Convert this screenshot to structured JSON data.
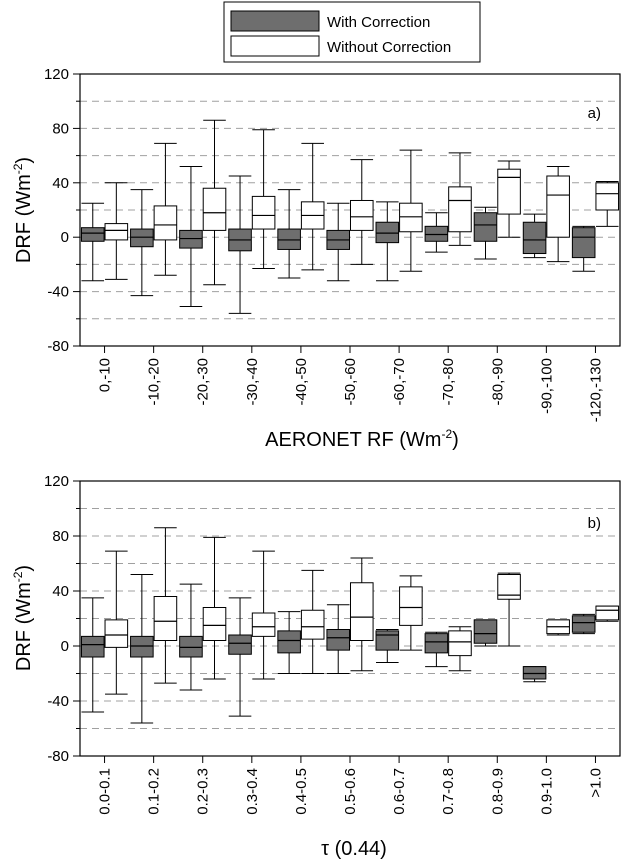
{
  "legend": {
    "items": [
      {
        "label": "With Correction",
        "fill": "#6e6e6e"
      },
      {
        "label": "Without Correction",
        "fill": "#ffffff"
      }
    ]
  },
  "chart_data": [
    {
      "type": "box",
      "panel_label": "a)",
      "xlabel_main": "AERONET RF (Wm",
      "xlabel_sup": "-2",
      "xlabel_tail": ")",
      "ylabel_main": "DRF (Wm",
      "ylabel_sup": "-2",
      "ylabel_tail": ")",
      "ylim": [
        -80,
        120
      ],
      "yticks": [
        -80,
        -40,
        0,
        40,
        80,
        120
      ],
      "grid": "dashed horizontal every 20",
      "categories": [
        "0,-10",
        "-10,-20",
        "-20,-30",
        "-30,-40",
        "-40,-50",
        "-50,-60",
        "-60,-70",
        "-70,-80",
        "-80,-90",
        "-90,-100",
        "-120,-130"
      ],
      "series": [
        {
          "name": "With Correction",
          "boxes": [
            {
              "min": -32,
              "q1": -3,
              "median": 3,
              "q3": 7,
              "max": 25
            },
            {
              "min": -43,
              "q1": -7,
              "median": 0,
              "q3": 6,
              "max": 35
            },
            {
              "min": -51,
              "q1": -8,
              "median": -1,
              "q3": 5,
              "max": 52
            },
            {
              "min": -56,
              "q1": -10,
              "median": -2,
              "q3": 6,
              "max": 45
            },
            {
              "min": -30,
              "q1": -9,
              "median": -2,
              "q3": 6,
              "max": 35
            },
            {
              "min": -32,
              "q1": -9,
              "median": -2,
              "q3": 5,
              "max": 25
            },
            {
              "min": -32,
              "q1": -4,
              "median": 3,
              "q3": 11,
              "max": 26
            },
            {
              "min": -11,
              "q1": -3,
              "median": 2,
              "q3": 8,
              "max": 18
            },
            {
              "min": -16,
              "q1": -3,
              "median": 9,
              "q3": 18,
              "max": 22
            },
            {
              "min": -15,
              "q1": -12,
              "median": -2,
              "q3": 11,
              "max": 17
            },
            {
              "min": -25,
              "q1": -15,
              "median": 0,
              "q3": 7,
              "max": 8
            }
          ]
        },
        {
          "name": "Without Correction",
          "boxes": [
            {
              "min": -31,
              "q1": -2,
              "median": 5,
              "q3": 10,
              "max": 40
            },
            {
              "min": -28,
              "q1": -2,
              "median": 9,
              "q3": 23,
              "max": 69
            },
            {
              "min": -35,
              "q1": 5,
              "median": 18,
              "q3": 36,
              "max": 86
            },
            {
              "min": -23,
              "q1": 6,
              "median": 16,
              "q3": 30,
              "max": 79
            },
            {
              "min": -24,
              "q1": 6,
              "median": 16,
              "q3": 26,
              "max": 69
            },
            {
              "min": -20,
              "q1": 5,
              "median": 15,
              "q3": 27,
              "max": 57
            },
            {
              "min": -25,
              "q1": 4,
              "median": 15,
              "q3": 25,
              "max": 64
            },
            {
              "min": -6,
              "q1": 4,
              "median": 27,
              "q3": 37,
              "max": 62
            },
            {
              "min": 0,
              "q1": 17,
              "median": 44,
              "q3": 50,
              "max": 56
            },
            {
              "min": -18,
              "q1": 0,
              "median": 31,
              "q3": 45,
              "max": 52
            },
            {
              "min": 8,
              "q1": 20,
              "median": 32,
              "q3": 40,
              "max": 41
            }
          ]
        }
      ]
    },
    {
      "type": "box",
      "panel_label": "b)",
      "xlabel_main": "τ (0.44)",
      "ylabel_main": "DRF (Wm",
      "ylabel_sup": "-2",
      "ylabel_tail": ")",
      "ylim": [
        -80,
        120
      ],
      "yticks": [
        -80,
        -40,
        0,
        40,
        80,
        120
      ],
      "grid": "dashed horizontal every 20",
      "categories": [
        "0.0-0.1",
        "0.1-0.2",
        "0.2-0.3",
        "0.3-0.4",
        "0.4-0.5",
        "0.5-0.6",
        "0.6-0.7",
        "0.7-0.8",
        "0.8-0.9",
        "0.9-1.0",
        ">1.0"
      ],
      "series": [
        {
          "name": "With Correction",
          "boxes": [
            {
              "min": -48,
              "q1": -8,
              "median": 1,
              "q3": 7,
              "max": 35
            },
            {
              "min": -56,
              "q1": -8,
              "median": 0,
              "q3": 7,
              "max": 52
            },
            {
              "min": -32,
              "q1": -8,
              "median": -1,
              "q3": 7,
              "max": 45
            },
            {
              "min": -51,
              "q1": -6,
              "median": 2,
              "q3": 8,
              "max": 35
            },
            {
              "min": -20,
              "q1": -5,
              "median": 4,
              "q3": 11,
              "max": 25
            },
            {
              "min": -20,
              "q1": -3,
              "median": 6,
              "q3": 12,
              "max": 30
            },
            {
              "min": -12,
              "q1": -3,
              "median": 8,
              "q3": 11,
              "max": 12
            },
            {
              "min": -15,
              "q1": -5,
              "median": 3,
              "q3": 9,
              "max": 10
            },
            {
              "min": 0,
              "q1": 2,
              "median": 9,
              "q3": 19,
              "max": 19
            },
            {
              "min": -26,
              "q1": -24,
              "median": -20,
              "q3": -15,
              "max": -15
            },
            {
              "min": 9,
              "q1": 10,
              "median": 17,
              "q3": 22,
              "max": 23
            }
          ]
        },
        {
          "name": "Without Correction",
          "boxes": [
            {
              "min": -35,
              "q1": -1,
              "median": 8,
              "q3": 19,
              "max": 69
            },
            {
              "min": -27,
              "q1": 4,
              "median": 18,
              "q3": 36,
              "max": 86
            },
            {
              "min": -24,
              "q1": 4,
              "median": 15,
              "q3": 28,
              "max": 79
            },
            {
              "min": -24,
              "q1": 7,
              "median": 14,
              "q3": 24,
              "max": 69
            },
            {
              "min": -20,
              "q1": 5,
              "median": 14,
              "q3": 26,
              "max": 55
            },
            {
              "min": -18,
              "q1": 4,
              "median": 21,
              "q3": 46,
              "max": 64
            },
            {
              "min": -3,
              "q1": 15,
              "median": 28,
              "q3": 43,
              "max": 51
            },
            {
              "min": -18,
              "q1": -7,
              "median": 3,
              "q3": 11,
              "max": 14
            },
            {
              "min": 0,
              "q1": 34,
              "median": 37,
              "q3": 52,
              "max": 53
            },
            {
              "min": 8,
              "q1": 9,
              "median": 14,
              "q3": 19,
              "max": 19
            },
            {
              "min": 18,
              "q1": 19,
              "median": 26,
              "q3": 29,
              "max": 29
            }
          ]
        }
      ]
    }
  ]
}
